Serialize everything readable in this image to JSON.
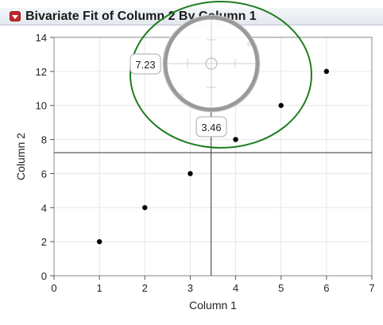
{
  "report": {
    "title": "Bivariate Fit of Column 2 By Column 1",
    "disclosure_icon": "red-triangle-menu-icon"
  },
  "crosshair": {
    "x_readout": "3.46",
    "y_readout": "7.23",
    "x_value": 3.46,
    "y_value": 7.23,
    "magnifier_icon": "crosshair-magnifier-icon",
    "highlight_color": "#1e7d1e"
  },
  "chart_data": {
    "type": "scatter",
    "xlabel": "Column 1",
    "ylabel": "Column 2",
    "xlim": [
      0,
      7
    ],
    "ylim": [
      0,
      14
    ],
    "x_ticks": [
      0,
      1,
      2,
      3,
      4,
      5,
      6,
      7
    ],
    "y_ticks": [
      0,
      2,
      4,
      6,
      8,
      10,
      12,
      14
    ],
    "grid": true,
    "series": [
      {
        "points": [
          {
            "x": 1,
            "y": 2
          },
          {
            "x": 2,
            "y": 4
          },
          {
            "x": 3,
            "y": 6
          },
          {
            "x": 4,
            "y": 8
          },
          {
            "x": 5,
            "y": 10
          },
          {
            "x": 6,
            "y": 12
          },
          {
            "x": 2.8,
            "y": 10.6
          },
          {
            "x": 4.3,
            "y": 13.6
          }
        ]
      }
    ]
  }
}
